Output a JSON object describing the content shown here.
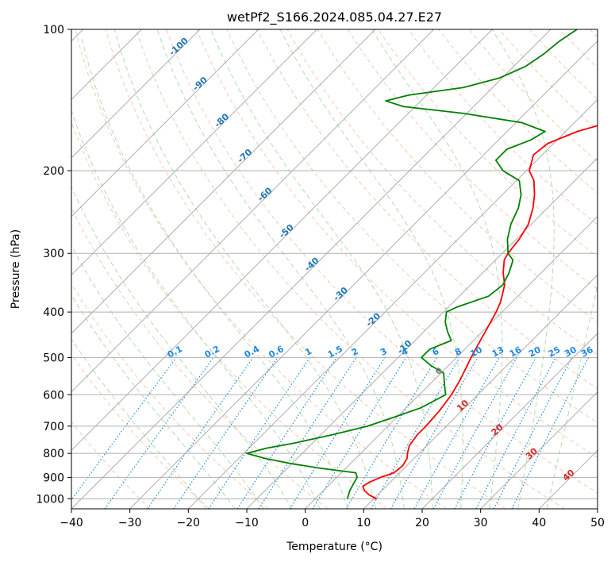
{
  "chart_data": {
    "type": "line",
    "title": "wetPf2_S166.2024.085.04.27.E27",
    "xlabel": "Temperature (°C)",
    "ylabel": "Pressure (hPa)",
    "xlim": [
      -40,
      50
    ],
    "ylim": [
      1050,
      100
    ],
    "y_scale": "log",
    "grid": true,
    "x_ticks": [
      -40,
      -30,
      -20,
      -10,
      0,
      10,
      20,
      30,
      40,
      50
    ],
    "y_ticks": [
      100,
      200,
      300,
      400,
      500,
      600,
      700,
      800,
      900,
      1000
    ],
    "skew_isotherm_labels": [
      -100,
      -90,
      -80,
      -70,
      -60,
      -50,
      -40,
      -30,
      -20,
      -10,
      0,
      10,
      20,
      30,
      40
    ],
    "mixing_ratio_labels": [
      "0.1",
      "0.2",
      "0.4",
      "0.6",
      "1",
      "1.5",
      "2",
      "3",
      "4",
      "6",
      "8",
      "10",
      "13",
      "16",
      "20",
      "25",
      "30",
      "36"
    ],
    "colors": {
      "temperature": "#ff0000",
      "dewpoint": "#008000",
      "isotherm": "#999999",
      "dry_adiabat": "#f4a582",
      "moist_adiabat": "#9fd49f",
      "mixing_ratio": "#1e88e5",
      "isotherm_label_cold": "#1f77b4",
      "isotherm_label_zero": "#808080",
      "isotherm_label_warm": "#d62728"
    },
    "series": [
      {
        "role": "temperature",
        "points": [
          [
            1000,
            10.5
          ],
          [
            980,
            8.5
          ],
          [
            960,
            7.0
          ],
          [
            940,
            6.0
          ],
          [
            920,
            6.5
          ],
          [
            900,
            7.5
          ],
          [
            880,
            9.0
          ],
          [
            850,
            9.3
          ],
          [
            820,
            8.8
          ],
          [
            800,
            8.0
          ],
          [
            770,
            7.0
          ],
          [
            730,
            6.5
          ],
          [
            700,
            6.5
          ],
          [
            650,
            6.2
          ],
          [
            600,
            5.5
          ],
          [
            560,
            4.5
          ],
          [
            520,
            3.2
          ],
          [
            500,
            2.5
          ],
          [
            470,
            1.5
          ],
          [
            440,
            0.5
          ],
          [
            400,
            -1.0
          ],
          [
            380,
            -2.0
          ],
          [
            350,
            -4.2
          ],
          [
            330,
            -6.5
          ],
          [
            310,
            -8.5
          ],
          [
            300,
            -9.0
          ],
          [
            280,
            -9.5
          ],
          [
            260,
            -10.5
          ],
          [
            240,
            -12.5
          ],
          [
            225,
            -14.5
          ],
          [
            210,
            -17.0
          ],
          [
            200,
            -19.5
          ],
          [
            185,
            -21.5
          ],
          [
            175,
            -21.0
          ],
          [
            165,
            -18.0
          ],
          [
            155,
            -12.5
          ],
          [
            148,
            -7.0
          ],
          [
            143,
            -2.0
          ],
          [
            138,
            3.0
          ],
          [
            132,
            7.5
          ],
          [
            127,
            11.0
          ],
          [
            120,
            13.0
          ],
          [
            113,
            14.0
          ],
          [
            106,
            17.5
          ],
          [
            100,
            21.5
          ]
        ]
      },
      {
        "role": "dewpoint",
        "points": [
          [
            1000,
            5.5
          ],
          [
            980,
            5.0
          ],
          [
            960,
            4.5
          ],
          [
            930,
            4.0
          ],
          [
            900,
            3.5
          ],
          [
            880,
            2.5
          ],
          [
            860,
            -4.5
          ],
          [
            840,
            -10.5
          ],
          [
            820,
            -15.5
          ],
          [
            800,
            -19.5
          ],
          [
            780,
            -17.0
          ],
          [
            760,
            -13.0
          ],
          [
            730,
            -8.0
          ],
          [
            700,
            -3.5
          ],
          [
            670,
            -0.5
          ],
          [
            640,
            2.5
          ],
          [
            600,
            4.5
          ],
          [
            570,
            2.5
          ],
          [
            540,
            0.5
          ],
          [
            520,
            -3.0
          ],
          [
            500,
            -6.0
          ],
          [
            480,
            -6.0
          ],
          [
            460,
            -3.8
          ],
          [
            440,
            -6.0
          ],
          [
            420,
            -8.0
          ],
          [
            400,
            -9.5
          ],
          [
            390,
            -8.5
          ],
          [
            370,
            -5.0
          ],
          [
            350,
            -4.5
          ],
          [
            330,
            -5.5
          ],
          [
            310,
            -7.0
          ],
          [
            300,
            -9.0
          ],
          [
            280,
            -11.5
          ],
          [
            260,
            -13.5
          ],
          [
            240,
            -15.0
          ],
          [
            225,
            -16.8
          ],
          [
            210,
            -19.5
          ],
          [
            200,
            -24.0
          ],
          [
            190,
            -27.0
          ],
          [
            180,
            -27.0
          ],
          [
            172,
            -24.5
          ],
          [
            165,
            -23.5
          ],
          [
            158,
            -29.0
          ],
          [
            151,
            -40.5
          ],
          [
            146,
            -52.0
          ],
          [
            142,
            -56.0
          ],
          [
            138,
            -53.0
          ],
          [
            133,
            -45.0
          ],
          [
            127,
            -40.5
          ],
          [
            120,
            -38.0
          ],
          [
            113,
            -37.0
          ],
          [
            106,
            -36.5
          ],
          [
            100,
            -35.5
          ]
        ]
      }
    ]
  }
}
